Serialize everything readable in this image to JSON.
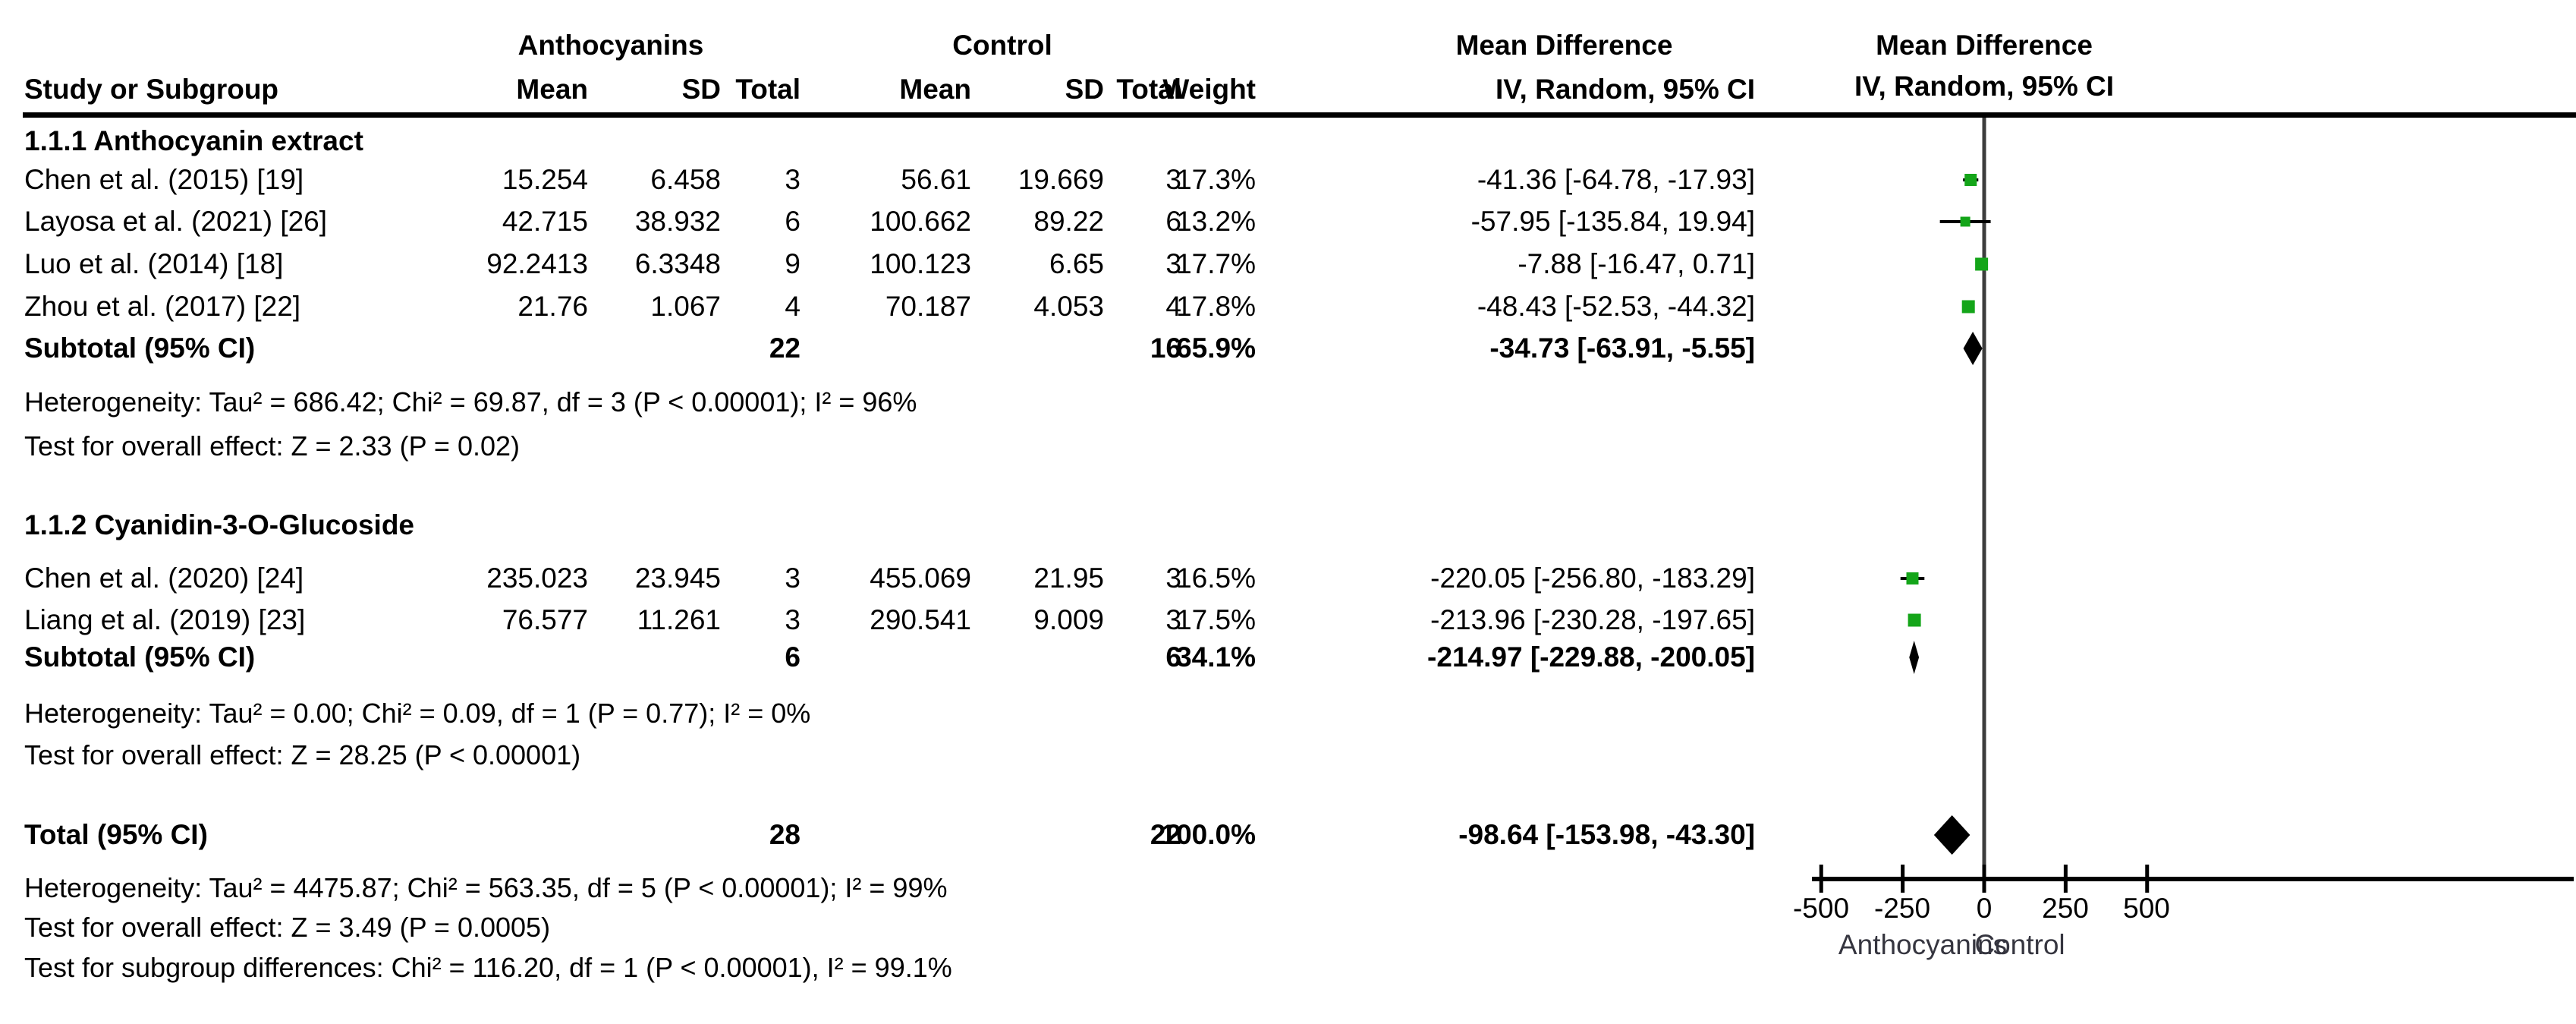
{
  "header": {
    "group1": "Anthocyanins",
    "group2": "Control",
    "study": "Study or Subgroup",
    "mean": "Mean",
    "sd": "SD",
    "total": "Total",
    "weight": "Weight",
    "md": "Mean Difference",
    "method": "IV, Random, 95% CI"
  },
  "table": {
    "g1": {
      "title": "1.1.1 Anthocyanin extract",
      "r1": {
        "study": "Chen et al. (2015) [19]",
        "mt": "15.254",
        "st": "6.458",
        "nt": "3",
        "mc": "56.61",
        "sc": "19.669",
        "nc": "3",
        "w": "17.3%",
        "ci": "-41.36 [-64.78, -17.93]"
      },
      "r2": {
        "study": "Layosa et al. (2021) [26]",
        "mt": "42.715",
        "st": "38.932",
        "nt": "6",
        "mc": "100.662",
        "sc": "89.22",
        "nc": "6",
        "w": "13.2%",
        "ci": "-57.95 [-135.84, 19.94]"
      },
      "r3": {
        "study": "Luo et al. (2014) [18]",
        "mt": "92.2413",
        "st": "6.3348",
        "nt": "9",
        "mc": "100.123",
        "sc": "6.65",
        "nc": "3",
        "w": "17.7%",
        "ci": "-7.88 [-16.47, 0.71]"
      },
      "r4": {
        "study": "Zhou et al. (2017) [22]",
        "mt": "21.76",
        "st": "1.067",
        "nt": "4",
        "mc": "70.187",
        "sc": "4.053",
        "nc": "4",
        "w": "17.8%",
        "ci": "-48.43 [-52.53, -44.32]"
      },
      "subtotal": {
        "study": "Subtotal (95% CI)",
        "nt": "22",
        "nc": "16",
        "w": "65.9%",
        "ci": "-34.73 [-63.91, -5.55]"
      },
      "het": "Heterogeneity: Tau² = 686.42; Chi² = 69.87, df = 3 (P < 0.00001); I² = 96%",
      "test": "Test for overall effect: Z = 2.33 (P = 0.02)"
    },
    "g2": {
      "title": "1.1.2 Cyanidin-3-O-Glucoside",
      "r1": {
        "study": "Chen et al. (2020) [24]",
        "mt": "235.023",
        "st": "23.945",
        "nt": "3",
        "mc": "455.069",
        "sc": "21.95",
        "nc": "3",
        "w": "16.5%",
        "ci": "-220.05 [-256.80, -183.29]"
      },
      "r2": {
        "study": "Liang et al. (2019) [23]",
        "mt": "76.577",
        "st": "11.261",
        "nt": "3",
        "mc": "290.541",
        "sc": "9.009",
        "nc": "3",
        "w": "17.5%",
        "ci": "-213.96 [-230.28, -197.65]"
      },
      "subtotal": {
        "study": "Subtotal (95% CI)",
        "nt": "6",
        "nc": "6",
        "w": "34.1%",
        "ci": "-214.97 [-229.88, -200.05]"
      },
      "het": "Heterogeneity: Tau² = 0.00; Chi² = 0.09, df = 1 (P = 0.77); I² = 0%",
      "test": "Test for overall effect: Z = 28.25 (P < 0.00001)"
    },
    "total_row": {
      "study": "Total (95% CI)",
      "nt": "28",
      "nc": "22",
      "w": "100.0%",
      "ci": "-98.64 [-153.98, -43.30]"
    },
    "total_het": "Heterogeneity: Tau² = 4475.87; Chi² = 563.35, df = 5 (P < 0.00001); I² = 99%",
    "total_test": "Test for overall effect: Z = 3.49 (P = 0.0005)",
    "subgroup_test": "Test for subgroup differences: Chi² = 116.20, df = 1 (P < 0.00001), I² = 99.1%"
  },
  "colors": {
    "marker_green": "#14A519",
    "summary_black": "#000000",
    "zero_line_gray": "#3D3D3D",
    "axis_black": "#000000"
  },
  "chart_data": {
    "type": "forest",
    "title": "Mean Difference",
    "model": "IV, Random, 95% CI",
    "x_axis": {
      "ticks": [
        -500,
        -250,
        0,
        250,
        500
      ],
      "tick_labels": [
        "-500",
        "-250",
        "0",
        "250",
        "500"
      ],
      "range": [
        -583,
        583
      ],
      "favours_left": "Anthocyanins",
      "favours_right": "Control"
    },
    "subgroups": [
      {
        "name": "1.1.1 Anthocyanin extract",
        "studies": [
          {
            "study": "Chen et al. (2015) [19]",
            "md": -41.36,
            "ci": [
              -64.78,
              -17.93
            ],
            "weight": 17.3
          },
          {
            "study": "Layosa et al. (2021) [26]",
            "md": -57.95,
            "ci": [
              -135.84,
              19.94
            ],
            "weight": 13.2
          },
          {
            "study": "Luo et al. (2014) [18]",
            "md": -7.88,
            "ci": [
              -16.47,
              0.71
            ],
            "weight": 17.7
          },
          {
            "study": "Zhou et al. (2017) [22]",
            "md": -48.43,
            "ci": [
              -52.53,
              -44.32
            ],
            "weight": 17.8
          }
        ],
        "subtotal": {
          "md": -34.73,
          "ci": [
            -63.91,
            -5.55
          ],
          "weight": 65.9
        }
      },
      {
        "name": "1.1.2 Cyanidin-3-O-Glucoside",
        "studies": [
          {
            "study": "Chen et al. (2020) [24]",
            "md": -220.05,
            "ci": [
              -256.8,
              -183.29
            ],
            "weight": 16.5
          },
          {
            "study": "Liang et al. (2019) [23]",
            "md": -213.96,
            "ci": [
              -230.28,
              -197.65
            ],
            "weight": 17.5
          }
        ],
        "subtotal": {
          "md": -214.97,
          "ci": [
            -229.88,
            -200.05
          ],
          "weight": 34.1
        }
      }
    ],
    "total": {
      "md": -98.64,
      "ci": [
        -153.98,
        -43.3
      ],
      "weight": 100.0
    }
  }
}
